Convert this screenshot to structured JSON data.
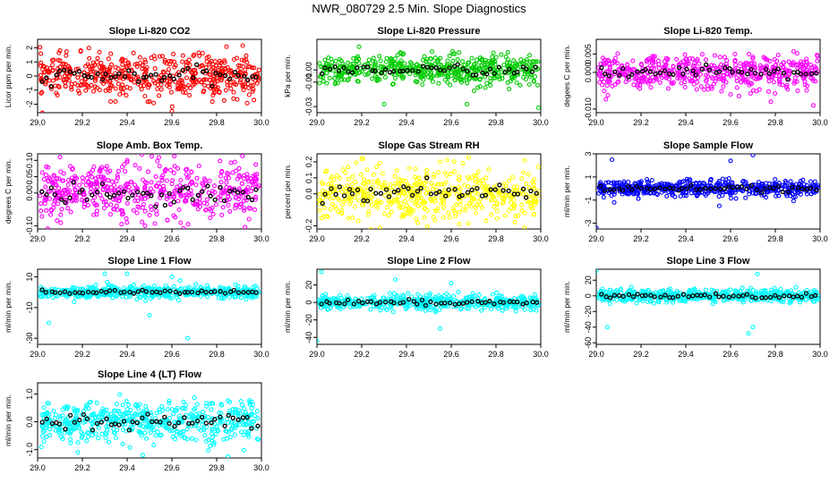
{
  "page": {
    "title": "NWR_080729  2.5 Min. Slope Diagnostics"
  },
  "chart_data": [
    {
      "type": "scatter",
      "title": "Slope Li-820 CO2",
      "ylabel": "Licor ppm per min.",
      "xlim": [
        29.0,
        30.0
      ],
      "ylim": [
        -2.6,
        2.6
      ],
      "xticks": [
        "29.0",
        "29.2",
        "29.4",
        "29.6",
        "29.8",
        "30.0"
      ],
      "yticks": [
        "-2",
        "-1",
        "0",
        "1",
        "2"
      ],
      "ytick_values": [
        -2,
        -1,
        0,
        1,
        2
      ],
      "color": "#ff0000",
      "spread": 0.75,
      "outliers": [
        [
          29.6,
          -2.5
        ],
        [
          29.5,
          -1.8
        ],
        [
          29.1,
          1.8
        ],
        [
          29.7,
          1.5
        ]
      ]
    },
    {
      "type": "scatter",
      "title": "Slope Li-820 Pressure",
      "ylabel": "kPa per min.",
      "xlim": [
        29.0,
        30.0
      ],
      "ylim": [
        -0.035,
        0.025
      ],
      "xticks": [
        "29.0",
        "29.2",
        "29.4",
        "29.6",
        "29.8",
        "30.0"
      ],
      "yticks": [
        "-0.03",
        "-0.01",
        "0.00"
      ],
      "ytick_values": [
        -0.03,
        -0.01,
        0.0
      ],
      "color": "#00cc00",
      "spread": 0.006,
      "outliers": [
        [
          29.3,
          -0.028
        ],
        [
          29.67,
          -0.028
        ],
        [
          29.99,
          -0.031
        ],
        [
          29.95,
          0.012
        ]
      ]
    },
    {
      "type": "scatter",
      "title": "Slope Li-820 Temp.",
      "ylabel": "degees C per min.",
      "xlim": [
        29.0,
        30.0
      ],
      "ylim": [
        -0.011,
        0.009
      ],
      "xticks": [
        "29.0",
        "29.2",
        "29.4",
        "29.6",
        "29.8",
        "30.0"
      ],
      "yticks": [
        "-0.010",
        "0.000",
        "0.005"
      ],
      "ytick_values": [
        -0.01,
        0.0,
        0.005
      ],
      "color": "#ff00ff",
      "spread": 0.0022,
      "outliers": [
        [
          29.97,
          -0.009
        ],
        [
          29.78,
          -0.008
        ],
        [
          29.6,
          -0.006
        ],
        [
          29.9,
          -0.005
        ]
      ]
    },
    {
      "type": "scatter",
      "title": "Slope Amb. Box Temp.",
      "ylabel": "degrees C per min.",
      "xlim": [
        29.0,
        30.0
      ],
      "ylim": [
        -0.11,
        0.12
      ],
      "xticks": [
        "29.0",
        "29.2",
        "29.4",
        "29.6",
        "29.8",
        "30.0"
      ],
      "yticks": [
        "-0.10",
        "0.00",
        "0.05",
        "0.10"
      ],
      "ytick_values": [
        -0.1,
        0.0,
        0.05,
        0.1
      ],
      "color": "#ff00ff",
      "spread": 0.045,
      "outliers": [
        [
          29.48,
          -0.1
        ],
        [
          29.1,
          0.11
        ],
        [
          29.4,
          0.1
        ]
      ]
    },
    {
      "type": "scatter",
      "title": "Slope Gas Stream RH",
      "ylabel": "percent per min.",
      "xlim": [
        29.0,
        30.0
      ],
      "ylim": [
        -0.22,
        0.25
      ],
      "xticks": [
        "29.0",
        "29.2",
        "29.4",
        "29.6",
        "29.8",
        "30.0"
      ],
      "yticks": [
        "-0.2",
        "0.0",
        "0.1",
        "0.2"
      ],
      "ytick_values": [
        -0.2,
        0.0,
        0.1,
        0.2
      ],
      "color": "#ffff00",
      "spread": 0.08,
      "outliers": [
        [
          29.2,
          0.22
        ],
        [
          29.45,
          -0.18
        ],
        [
          29.55,
          0.2
        ]
      ]
    },
    {
      "type": "scatter",
      "title": "Slope Sample Flow",
      "ylabel": "ml/min per min.",
      "xlim": [
        29.0,
        30.0
      ],
      "ylim": [
        -3.5,
        3.0
      ],
      "xticks": [
        "29.0",
        "29.2",
        "29.4",
        "29.6",
        "29.8",
        "30.0"
      ],
      "yticks": [
        "-3",
        "-1",
        "1",
        "3"
      ],
      "ytick_values": [
        -3,
        -1,
        1,
        3
      ],
      "color": "#0000ff",
      "spread": 0.35,
      "outliers": [
        [
          29.0,
          -3.4
        ],
        [
          29.07,
          2.5
        ],
        [
          29.6,
          2.4
        ],
        [
          29.7,
          2.9
        ],
        [
          29.55,
          -1.5
        ],
        [
          29.08,
          -1.2
        ]
      ]
    },
    {
      "type": "scatter",
      "title": "Slope Line 1 Flow",
      "ylabel": "ml/min per min.",
      "xlim": [
        29.0,
        30.0
      ],
      "ylim": [
        -34,
        15
      ],
      "xticks": [
        "29.0",
        "29.2",
        "29.4",
        "29.6",
        "29.8",
        "30.0"
      ],
      "yticks": [
        "-30",
        "-10",
        "10"
      ],
      "ytick_values": [
        -30,
        -10,
        10
      ],
      "color": "#00ffff",
      "spread": 2.0,
      "outliers": [
        [
          29.4,
          12
        ],
        [
          29.6,
          10
        ],
        [
          29.67,
          -30
        ],
        [
          29.05,
          -20
        ],
        [
          29.5,
          -15
        ],
        [
          29.3,
          12
        ]
      ]
    },
    {
      "type": "scatter",
      "title": "Slope Line 2 Flow",
      "ylabel": "ml/min per min.",
      "xlim": [
        29.0,
        30.0
      ],
      "ylim": [
        -48,
        38
      ],
      "xticks": [
        "29.0",
        "29.2",
        "29.4",
        "29.6",
        "29.8",
        "30.0"
      ],
      "yticks": [
        "-40",
        "-20",
        "0",
        "20"
      ],
      "ytick_values": [
        -40,
        -20,
        0,
        20
      ],
      "color": "#00ffff",
      "spread": 4.0,
      "outliers": [
        [
          29.02,
          35
        ],
        [
          29.0,
          -44
        ],
        [
          29.6,
          22
        ],
        [
          29.55,
          -30
        ],
        [
          29.35,
          26
        ]
      ]
    },
    {
      "type": "scatter",
      "title": "Slope Line 3 Flow",
      "ylabel": "ml/min per min.",
      "xlim": [
        29.0,
        30.0
      ],
      "ylim": [
        -62,
        34
      ],
      "xticks": [
        "29.0",
        "29.2",
        "29.4",
        "29.6",
        "29.8",
        "30.0"
      ],
      "yticks": [
        "-60",
        "-40",
        "-20",
        "0",
        "20"
      ],
      "ytick_values": [
        -60,
        -40,
        -20,
        0,
        20
      ],
      "color": "#00ffff",
      "spread": 4.0,
      "outliers": [
        [
          29.0,
          32
        ],
        [
          29.05,
          -40
        ],
        [
          29.7,
          -40
        ],
        [
          29.68,
          -48
        ],
        [
          29.72,
          28
        ]
      ]
    },
    {
      "type": "scatter",
      "title": "Slope Line 4 (LT) Flow",
      "ylabel": "ml/min per min.",
      "xlim": [
        29.0,
        30.0
      ],
      "ylim": [
        -1.3,
        1.4
      ],
      "xticks": [
        "29.0",
        "29.2",
        "29.4",
        "29.6",
        "29.8",
        "30.0"
      ],
      "yticks": [
        "-1.0",
        "0.0",
        "1.0"
      ],
      "ytick_values": [
        -1.0,
        0.0,
        1.0
      ],
      "color": "#00ffff",
      "spread": 0.35,
      "outliers": [
        [
          29.47,
          -1.2
        ],
        [
          29.85,
          -1.25
        ],
        [
          29.18,
          -1.1
        ],
        [
          29.38,
          -0.8
        ]
      ]
    }
  ]
}
